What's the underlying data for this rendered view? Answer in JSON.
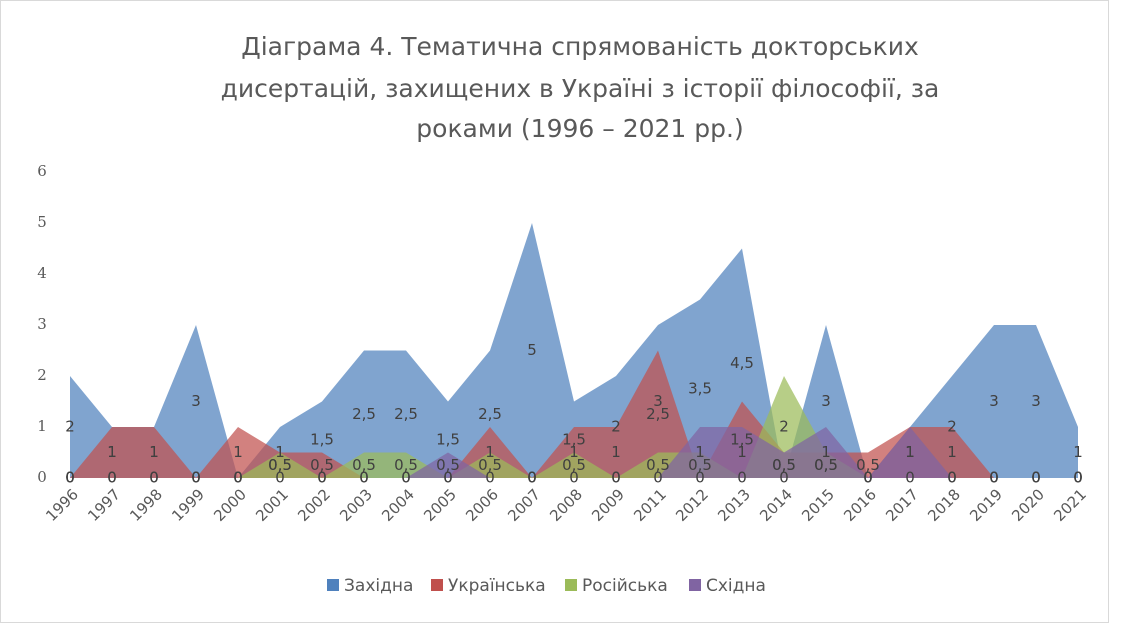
{
  "chart_data": {
    "type": "area",
    "title": [
      "Діаграма 4. Тематична спрямованість докторських",
      "дисертацій, захищених в Україні з історії філософії, за",
      "роками (1996 – 2021 рр.)"
    ],
    "categories": [
      "1996",
      "1997",
      "1998",
      "1999",
      "2000",
      "2001",
      "2002",
      "2003",
      "2004",
      "2005",
      "2006",
      "2007",
      "2008",
      "2009",
      "2011",
      "2012",
      "2013",
      "2014",
      "2015",
      "2016",
      "2017",
      "2018",
      "2019",
      "2020",
      "2021"
    ],
    "series": [
      {
        "name": "Західна",
        "color": "#4f81bd",
        "values": [
          2,
          1,
          1,
          3,
          0,
          1,
          1.5,
          2.5,
          2.5,
          1.5,
          2.5,
          5,
          1.5,
          2,
          3,
          3.5,
          4.5,
          0,
          3,
          0,
          1,
          2,
          3,
          3,
          1
        ],
        "value_labels": [
          "2",
          "1",
          "1",
          "3",
          "0",
          "1",
          "1,5",
          "2,5",
          "2,5",
          "1,5",
          "2,5",
          "5",
          "1,5",
          "2",
          "3",
          "3,5",
          "4,5",
          "0",
          "3",
          "0",
          "1",
          "2",
          "3",
          "3",
          "1"
        ]
      },
      {
        "name": "Українська",
        "color": "#c0504d",
        "values": [
          0,
          1,
          1,
          0,
          1,
          0.5,
          0.5,
          0,
          0,
          0,
          1,
          0,
          1,
          1,
          2.5,
          0,
          1.5,
          0.5,
          0.5,
          0.5,
          1,
          1,
          0,
          0,
          0
        ],
        "value_labels": [
          "0",
          "1",
          "1",
          "0",
          "1",
          "0,5",
          "0,5",
          "0",
          "0",
          "0",
          "1",
          "0",
          "1",
          "1",
          "2,5",
          "0",
          "1,5",
          "0,5",
          "0,5",
          "0,5",
          "1",
          "1",
          "0",
          "0",
          "0"
        ]
      },
      {
        "name": "Російська",
        "color": "#9bbb59",
        "values": [
          0,
          0,
          0,
          0,
          0,
          0.5,
          0,
          0.5,
          0.5,
          0,
          0.5,
          0,
          0.5,
          0,
          0.5,
          0.5,
          0,
          2,
          0.5,
          0,
          0,
          0,
          0,
          0,
          0
        ],
        "value_labels": [
          "0",
          "0",
          "0",
          "0",
          "0",
          "0,5",
          "0",
          "0,5",
          "0,5",
          "0",
          "0,5",
          "0",
          "0,5",
          "0",
          "0,5",
          "0,5",
          "0",
          "2",
          "0,5",
          "0",
          "0",
          "0",
          "0",
          "0",
          "0"
        ]
      },
      {
        "name": "Східна",
        "color": "#8064a2",
        "values": [
          0,
          0,
          0,
          0,
          0,
          0,
          0,
          0,
          0,
          0.5,
          0,
          0,
          0,
          0,
          0,
          1,
          1,
          0.5,
          1,
          0,
          1,
          0,
          0,
          0,
          0
        ],
        "value_labels": [
          "0",
          "0",
          "0",
          "0",
          "0",
          "0",
          "0",
          "0",
          "0",
          "0,5",
          "0",
          "0",
          "0",
          "0",
          "0",
          "1",
          "1",
          "0,5",
          "1",
          "0",
          "1",
          "0",
          "0",
          "0",
          "0"
        ]
      }
    ],
    "ylim": [
      0,
      6
    ],
    "yticks": [
      0,
      1,
      2,
      3,
      4,
      5,
      6
    ],
    "legend": "bottom"
  }
}
